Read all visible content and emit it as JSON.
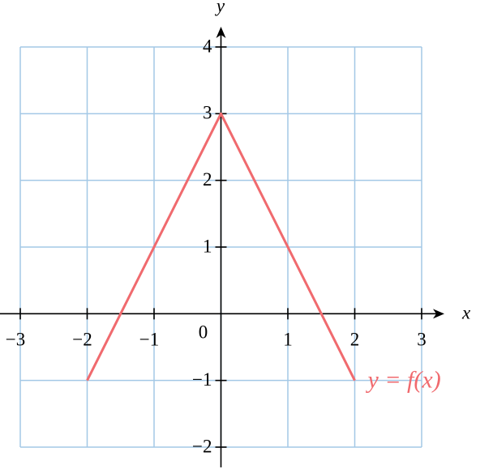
{
  "chart_data": {
    "type": "line",
    "x_label": "x",
    "y_label": "y",
    "x": [
      -2,
      0,
      2
    ],
    "series": [
      {
        "name": "y = f(x)",
        "color": "#f06a6e",
        "values": [
          -1,
          3,
          -1
        ]
      }
    ],
    "xlim": [
      -3,
      3
    ],
    "xticks": [
      {
        "value": -3,
        "label": "−3"
      },
      {
        "value": -2,
        "label": "−2"
      },
      {
        "value": -1,
        "label": "−1"
      },
      0,
      1,
      2,
      3
    ],
    "ylim": [
      -2,
      4
    ],
    "yticks": [
      {
        "value": -2,
        "label": "−2"
      },
      {
        "value": -1,
        "label": "−1"
      },
      1,
      2,
      3,
      4
    ],
    "grid": true,
    "grid_color": "#a3c8e6"
  }
}
